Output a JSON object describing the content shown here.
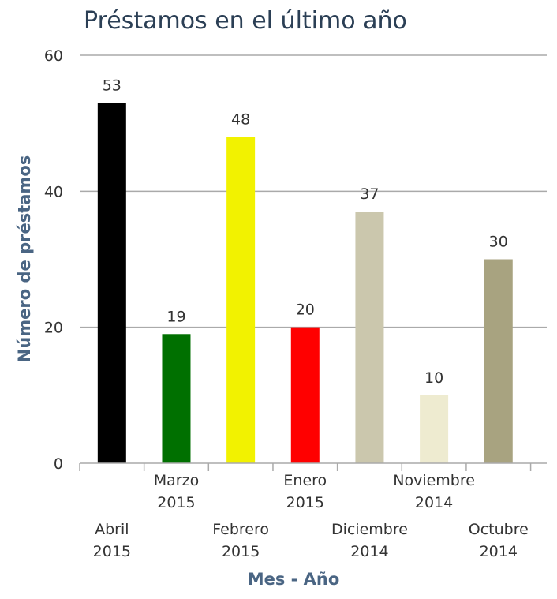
{
  "chart_data": {
    "type": "bar",
    "title": "Préstamos en el último año",
    "xlabel": "Mes - Año",
    "ylabel": "Número de préstamos",
    "ylim": [
      0,
      60
    ],
    "yticks": [
      0,
      20,
      40,
      60
    ],
    "grid": true,
    "categories": [
      [
        "Abril",
        "2015"
      ],
      [
        "Marzo",
        "2015"
      ],
      [
        "Febrero",
        "2015"
      ],
      [
        "Enero",
        "2015"
      ],
      [
        "Diciembre",
        "2014"
      ],
      [
        "Noviembre",
        "2014"
      ],
      [
        "Octubre",
        "2014"
      ]
    ],
    "values": [
      53,
      19,
      48,
      20,
      37,
      10,
      30
    ],
    "colors": [
      "#000000",
      "#007000",
      "#f2f200",
      "#ff0000",
      "#cbc7ad",
      "#eeebd0",
      "#a8a380"
    ],
    "data_labels": [
      "53",
      "19",
      "48",
      "20",
      "37",
      "10",
      "30"
    ]
  }
}
